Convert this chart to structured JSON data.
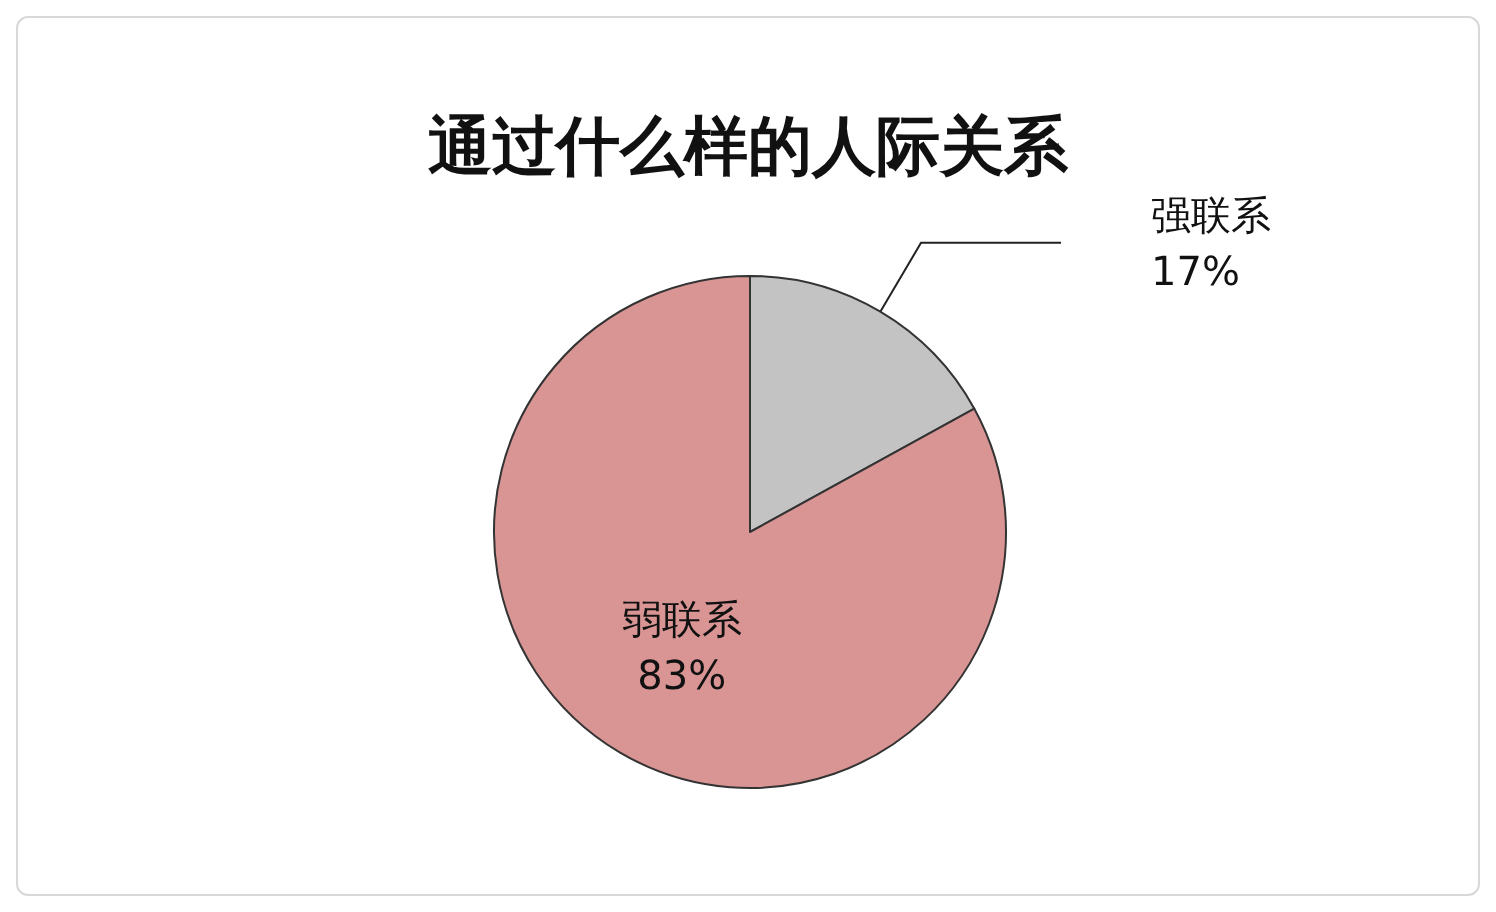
{
  "chart_data": {
    "type": "pie",
    "title": "通过什么样的人际关系",
    "categories": [
      "强联系",
      "弱联系"
    ],
    "values": [
      17,
      83
    ],
    "colors": [
      "#c3c3c3",
      "#d99594"
    ],
    "value_labels": [
      "17%",
      "83%"
    ],
    "legend": false
  }
}
